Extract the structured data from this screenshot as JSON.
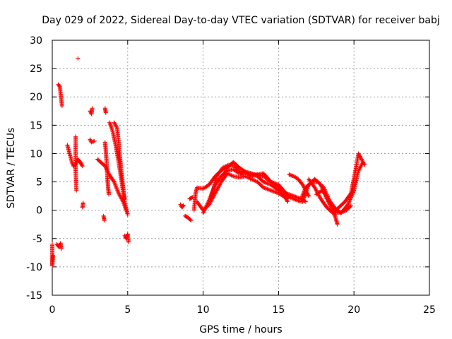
{
  "chart_data": {
    "type": "scatter",
    "title": "Day 029 of 2022, Sidereal Day-to-day VTEC variation (SDTVAR) for receiver babj",
    "xlabel": "GPS time / hours",
    "ylabel": "SDTVAR / TECUs",
    "xlim": [
      0,
      25
    ],
    "ylim": [
      -15,
      30
    ],
    "xticks": [
      0,
      5,
      10,
      15,
      20,
      25
    ],
    "yticks": [
      -15,
      -10,
      -5,
      0,
      5,
      10,
      15,
      20,
      25,
      30
    ],
    "grid": true,
    "marker": "+",
    "color": "#ff0000",
    "series": [
      {
        "name": "SDTVAR",
        "tracks": [
          [
            [
              0.0,
              -6.0
            ],
            [
              0.0,
              -9.8
            ],
            [
              0.05,
              -8.0
            ]
          ],
          [
            [
              0.3,
              -6.0
            ],
            [
              0.45,
              -6.5
            ],
            [
              0.55,
              -5.8
            ],
            [
              0.6,
              -6.8
            ]
          ],
          [
            [
              0.4,
              22.2
            ],
            [
              0.5,
              21.8
            ],
            [
              0.6,
              19.5
            ],
            [
              0.65,
              18.4
            ]
          ],
          [
            [
              1.0,
              11.5
            ],
            [
              1.15,
              10.0
            ],
            [
              1.3,
              8.5
            ],
            [
              1.4,
              7.8
            ],
            [
              1.55,
              8.0
            ],
            [
              1.7,
              9.0
            ],
            [
              1.85,
              8.5
            ],
            [
              2.0,
              7.8
            ]
          ],
          [
            [
              1.55,
              13.0
            ],
            [
              1.55,
              7.0
            ],
            [
              1.6,
              3.5
            ]
          ],
          [
            [
              1.7,
              26.8
            ]
          ],
          [
            [
              2.0,
              0.5
            ],
            [
              2.05,
              1.3
            ]
          ],
          [
            [
              2.5,
              17.5
            ],
            [
              2.6,
              17.0
            ],
            [
              2.65,
              18.0
            ]
          ],
          [
            [
              2.5,
              12.5
            ],
            [
              2.6,
              12.0
            ],
            [
              2.8,
              12.2
            ]
          ],
          [
            [
              3.0,
              9.0
            ],
            [
              3.2,
              8.5
            ],
            [
              3.5,
              7.8
            ],
            [
              3.8,
              6.2
            ],
            [
              4.1,
              5.0
            ],
            [
              4.4,
              3.0
            ],
            [
              4.7,
              1.5
            ],
            [
              4.9,
              0.0
            ]
          ],
          [
            [
              3.5,
              12.0
            ],
            [
              3.55,
              10.5
            ],
            [
              3.6,
              8.5
            ],
            [
              3.65,
              6.0
            ],
            [
              3.7,
              4.0
            ],
            [
              3.75,
              2.8
            ]
          ],
          [
            [
              3.4,
              -1.0
            ],
            [
              3.45,
              -1.8
            ]
          ],
          [
            [
              3.5,
              18.0
            ],
            [
              3.55,
              17.2
            ]
          ],
          [
            [
              3.8,
              15.5
            ],
            [
              4.0,
              14.0
            ],
            [
              4.2,
              11.5
            ],
            [
              4.4,
              8.5
            ],
            [
              4.6,
              5.0
            ],
            [
              4.8,
              1.5
            ],
            [
              5.0,
              -0.8
            ]
          ],
          [
            [
              4.1,
              15.5
            ],
            [
              4.3,
              14.5
            ],
            [
              4.4,
              12.0
            ],
            [
              4.5,
              9.0
            ],
            [
              4.6,
              6.5
            ],
            [
              4.7,
              4.0
            ],
            [
              4.8,
              2.0
            ]
          ],
          [
            [
              4.8,
              -4.5
            ],
            [
              4.9,
              -5.0
            ],
            [
              5.0,
              -4.2
            ],
            [
              5.05,
              -5.6
            ]
          ],
          [
            [
              8.5,
              1.0
            ],
            [
              8.6,
              0.5
            ],
            [
              8.7,
              0.9
            ]
          ],
          [
            [
              8.8,
              -1.0
            ],
            [
              9.0,
              -1.3
            ],
            [
              9.2,
              -1.8
            ]
          ],
          [
            [
              9.1,
              2.0
            ],
            [
              9.3,
              2.3
            ]
          ],
          [
            [
              9.4,
              0.0
            ],
            [
              9.5,
              3.0
            ],
            [
              9.6,
              4.0
            ],
            [
              10.0,
              3.8
            ],
            [
              10.4,
              4.5
            ],
            [
              10.8,
              6.0
            ],
            [
              11.2,
              7.0
            ],
            [
              11.6,
              7.5
            ],
            [
              12.0,
              8.5
            ],
            [
              12.4,
              7.5
            ],
            [
              12.8,
              6.8
            ],
            [
              13.2,
              6.0
            ],
            [
              13.6,
              6.3
            ],
            [
              14.0,
              6.5
            ],
            [
              14.5,
              5.0
            ],
            [
              15.0,
              4.0
            ],
            [
              15.4,
              2.5
            ],
            [
              15.6,
              1.5
            ]
          ],
          [
            [
              9.6,
              1.5
            ],
            [
              10.0,
              0.0
            ],
            [
              10.4,
              1.0
            ],
            [
              10.8,
              3.0
            ],
            [
              11.2,
              5.0
            ],
            [
              11.6,
              6.5
            ],
            [
              12.0,
              6.0
            ],
            [
              12.4,
              5.8
            ],
            [
              12.8,
              6.0
            ],
            [
              13.2,
              5.5
            ],
            [
              13.6,
              5.0
            ],
            [
              14.0,
              4.0
            ],
            [
              14.5,
              3.5
            ],
            [
              15.0,
              3.0
            ],
            [
              15.6,
              2.0
            ]
          ],
          [
            [
              10.0,
              -0.5
            ],
            [
              10.4,
              1.8
            ],
            [
              10.8,
              4.5
            ],
            [
              11.2,
              6.0
            ],
            [
              11.6,
              7.0
            ],
            [
              12.0,
              7.2
            ],
            [
              12.4,
              6.5
            ],
            [
              12.8,
              6.8
            ],
            [
              13.2,
              6.5
            ],
            [
              13.6,
              6.0
            ],
            [
              14.0,
              5.0
            ],
            [
              14.5,
              4.5
            ],
            [
              15.0,
              3.5
            ],
            [
              15.6,
              2.5
            ],
            [
              16.0,
              2.0
            ],
            [
              16.5,
              1.5
            ]
          ],
          [
            [
              10.5,
              2.0
            ],
            [
              10.9,
              6.0
            ],
            [
              11.3,
              7.5
            ],
            [
              11.7,
              8.0
            ],
            [
              12.1,
              7.8
            ],
            [
              12.5,
              6.5
            ],
            [
              13.0,
              6.5
            ],
            [
              13.5,
              6.3
            ],
            [
              14.0,
              6.0
            ],
            [
              14.5,
              5.0
            ],
            [
              15.0,
              4.5
            ],
            [
              15.5,
              3.0
            ],
            [
              16.0,
              2.5
            ],
            [
              16.5,
              2.0
            ],
            [
              16.8,
              1.5
            ]
          ],
          [
            [
              15.7,
              6.3
            ],
            [
              16.0,
              6.0
            ],
            [
              16.3,
              5.5
            ],
            [
              16.6,
              4.5
            ],
            [
              16.9,
              3.0
            ],
            [
              17.0,
              2.5
            ]
          ],
          [
            [
              16.5,
              2.0
            ],
            [
              16.8,
              4.0
            ],
            [
              17.2,
              5.0
            ],
            [
              17.6,
              5.0
            ],
            [
              18.0,
              4.0
            ],
            [
              18.4,
              1.5
            ],
            [
              18.8,
              -0.5
            ],
            [
              19.2,
              -0.3
            ],
            [
              19.6,
              1.0
            ],
            [
              20.0,
              3.5
            ],
            [
              20.3,
              7.0
            ],
            [
              20.6,
              8.5
            ]
          ],
          [
            [
              16.6,
              1.5
            ],
            [
              17.0,
              4.5
            ],
            [
              17.4,
              5.5
            ],
            [
              17.8,
              4.5
            ],
            [
              18.2,
              2.0
            ],
            [
              18.6,
              0.0
            ],
            [
              18.8,
              -1.5
            ],
            [
              18.9,
              -2.5
            ]
          ],
          [
            [
              17.0,
              5.5
            ],
            [
              17.4,
              4.0
            ],
            [
              17.8,
              2.0
            ],
            [
              18.2,
              0.5
            ],
            [
              18.6,
              -0.5
            ],
            [
              19.0,
              0.5
            ],
            [
              19.4,
              1.5
            ],
            [
              19.8,
              3.0
            ],
            [
              20.1,
              7.0
            ],
            [
              20.3,
              10.0
            ],
            [
              20.5,
              9.0
            ],
            [
              20.7,
              8.0
            ]
          ],
          [
            [
              17.5,
              2.8
            ],
            [
              17.9,
              3.5
            ],
            [
              18.3,
              2.0
            ],
            [
              18.7,
              0.5
            ],
            [
              19.1,
              -0.5
            ],
            [
              19.5,
              0.0
            ],
            [
              19.8,
              0.8
            ]
          ]
        ]
      }
    ]
  }
}
